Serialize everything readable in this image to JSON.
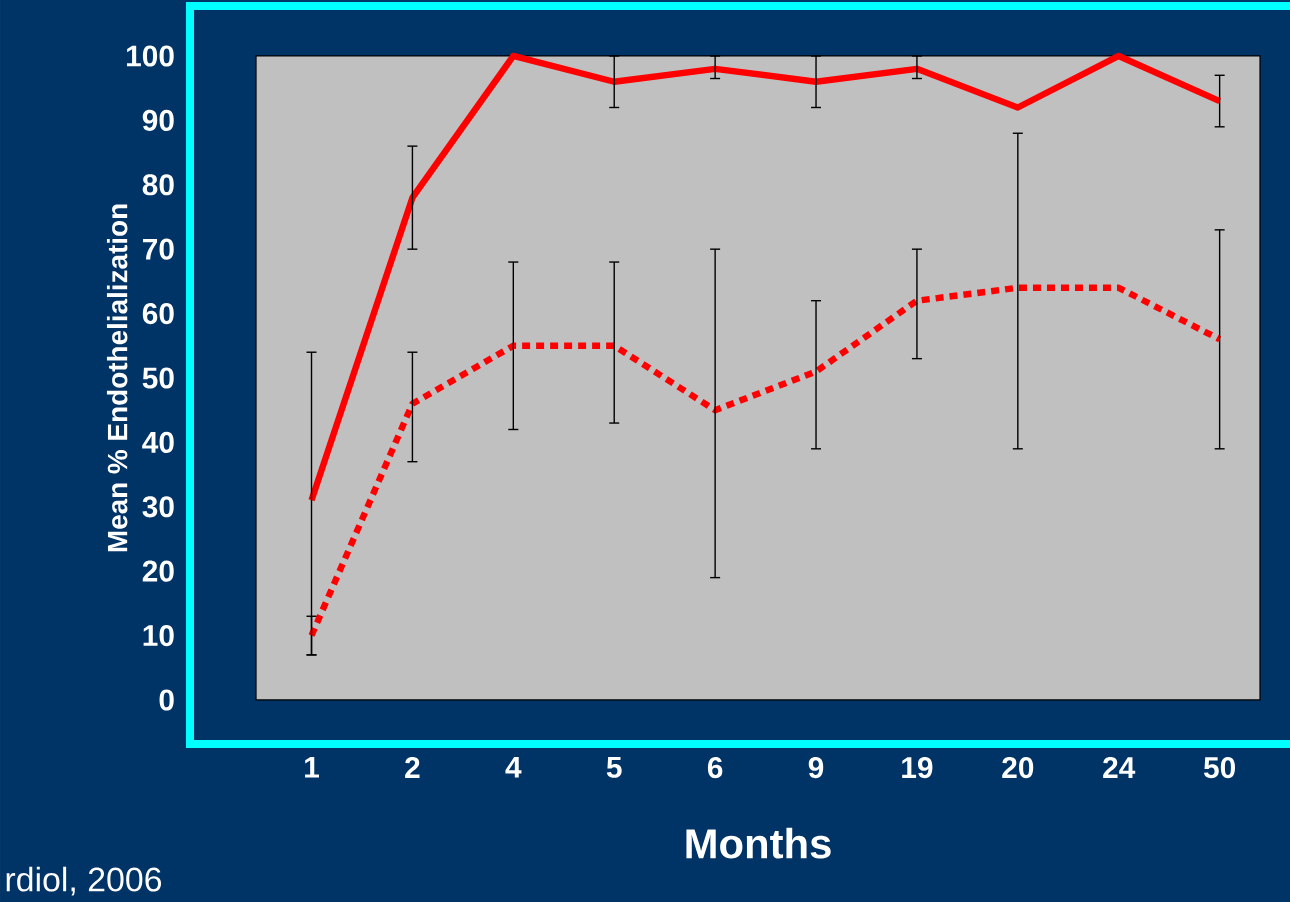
{
  "chart_data": {
    "type": "line",
    "xlabel": "Months",
    "ylabel": "Mean % Endothelialization",
    "categories": [
      "1",
      "2",
      "4",
      "5",
      "6",
      "9",
      "19",
      "20",
      "24",
      "50"
    ],
    "ylim": [
      0,
      100
    ],
    "yticks": [
      0,
      10,
      20,
      30,
      40,
      50,
      60,
      70,
      80,
      90,
      100
    ],
    "grid": false,
    "marker": "none",
    "series": [
      {
        "color": "#ff0000",
        "line_style": "solid",
        "values": [
          31,
          78,
          100,
          96,
          98,
          96,
          98,
          92,
          100,
          93
        ],
        "errors": [
          [
            7,
            54
          ],
          [
            70,
            86
          ],
          null,
          [
            92,
            100
          ],
          [
            96.5,
            100
          ],
          [
            92,
            100
          ],
          [
            96.5,
            100
          ],
          null,
          null,
          [
            89,
            97
          ]
        ]
      },
      {
        "color": "#ff0000",
        "line_style": "dotted",
        "values": [
          10,
          46,
          55,
          55,
          45,
          51,
          62,
          64,
          64,
          56
        ],
        "errors": [
          [
            7,
            13
          ],
          [
            37,
            54
          ],
          [
            42,
            68
          ],
          [
            43,
            68
          ],
          [
            19,
            70
          ],
          [
            39,
            62
          ],
          [
            53,
            70
          ],
          [
            39,
            88
          ],
          null,
          [
            39,
            73
          ]
        ]
      }
    ],
    "annotations": [
      "rdiol, 2006"
    ]
  }
}
